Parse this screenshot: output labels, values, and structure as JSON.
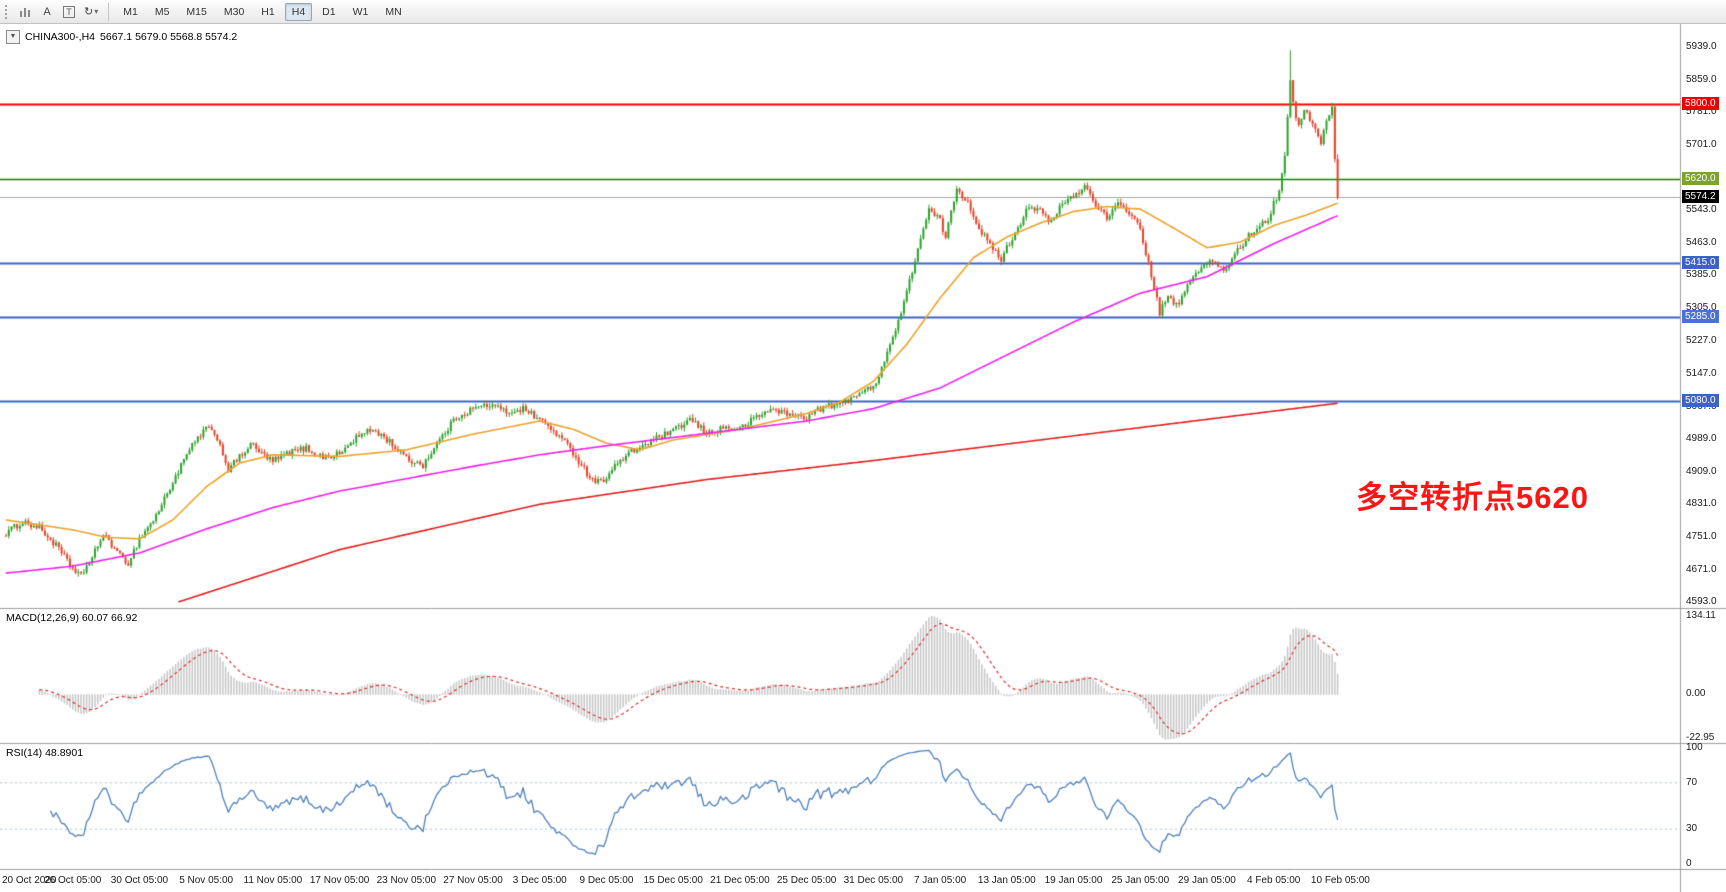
{
  "toolbar": {
    "cursor_label": "A",
    "text_label": "T",
    "cycle_glyph": "↻",
    "dropdown_glyph": "▾",
    "timeframes": [
      "M1",
      "M5",
      "M15",
      "M30",
      "H1",
      "H4",
      "D1",
      "W1",
      "MN"
    ],
    "active_timeframe": "H4"
  },
  "chart": {
    "collapse_glyph": "▼",
    "symbol_period": "CHINA300-,H4",
    "ohlc_text": "5667.1 5679.0 5568.8 5574.2",
    "annotation": {
      "text": "多空转折点5620",
      "color": "#fe1414"
    },
    "price_ticks": [
      {
        "price": 5939.0,
        "label": "5939.0"
      },
      {
        "price": 5859.0,
        "label": "5859.0"
      },
      {
        "price": 5781.0,
        "label": "5781.0"
      },
      {
        "price": 5701.0,
        "label": "5701.0"
      },
      {
        "price": 5620.0,
        "label": "5620.0"
      },
      {
        "price": 5543.0,
        "label": "5543.0"
      },
      {
        "price": 5463.0,
        "label": "5463.0"
      },
      {
        "price": 5385.0,
        "label": "5385.0"
      },
      {
        "price": 5305.0,
        "label": "5305.0"
      },
      {
        "price": 5227.0,
        "label": "5227.0"
      },
      {
        "price": 5147.0,
        "label": "5147.0"
      },
      {
        "price": 5067.0,
        "label": "5067.0"
      },
      {
        "price": 4989.0,
        "label": "4989.0"
      },
      {
        "price": 4909.0,
        "label": "4909.0"
      },
      {
        "price": 4831.0,
        "label": "4831.0"
      },
      {
        "price": 4751.0,
        "label": "4751.0"
      },
      {
        "price": 4671.0,
        "label": "4671.0"
      },
      {
        "price": 4593.0,
        "label": "4593.0"
      }
    ],
    "level_lines": [
      {
        "price": 5800.0,
        "label": "5800.0",
        "line_color": "#ff0000",
        "box_color": "#ee0000",
        "width": 2
      },
      {
        "price": 5620.0,
        "label": "5620.0",
        "line_color": "#008a00",
        "box_color": "#7ea32a",
        "width": 1.6
      },
      {
        "price": 5574.2,
        "label": "5574.2",
        "line_color": "#a8a8a8",
        "box_color": "#000000",
        "width": 1
      },
      {
        "price": 5415.0,
        "label": "5415.0",
        "line_color": "#3a62c8",
        "box_color": "#3a62c8",
        "width": 2
      },
      {
        "price": 5285.0,
        "label": "5285.0",
        "line_color": "#3a62c8",
        "box_color": "#4a72d4",
        "width": 2
      },
      {
        "price": 5080.0,
        "label": "5080.0",
        "line_color": "#3a62c8",
        "box_color": "#3a62c8",
        "width": 2
      }
    ]
  },
  "indicators": {
    "macd_header": "MACD(12,26,9) 60.07 66.92",
    "rsi_header": "RSI(14) 48.8901",
    "macd_scale": {
      "max_label": "134.11",
      "zero_label": "0.00",
      "min_label": "-22.95"
    },
    "rsi_scale": [
      {
        "value": 100,
        "label": "100"
      },
      {
        "value": 70,
        "label": "70"
      },
      {
        "value": 30,
        "label": "30"
      },
      {
        "value": 0,
        "label": "0"
      }
    ]
  },
  "chart_data": {
    "type": "candlestick",
    "symbol": "CHINA300-",
    "timeframe": "H4",
    "bars": 480,
    "y_range": [
      4593.0,
      5939.0
    ],
    "current_price": 5574.2,
    "last_bar_ohlc": {
      "open": 5667.1,
      "high": 5679.0,
      "low": 5568.8,
      "close": 5574.2
    },
    "spike_high": {
      "bar": 462,
      "price": 5931
    },
    "horizontal_levels": [
      5800.0,
      5620.0,
      5415.0,
      5285.0,
      5080.0
    ],
    "close_anchors": [
      [
        0,
        4760
      ],
      [
        6,
        4788
      ],
      [
        12,
        4772
      ],
      [
        18,
        4730
      ],
      [
        24,
        4672
      ],
      [
        28,
        4658
      ],
      [
        32,
        4722
      ],
      [
        36,
        4756
      ],
      [
        40,
        4710
      ],
      [
        44,
        4688
      ],
      [
        48,
        4746
      ],
      [
        54,
        4802
      ],
      [
        60,
        4884
      ],
      [
        66,
        4962
      ],
      [
        72,
        5016
      ],
      [
        76,
        4992
      ],
      [
        80,
        4914
      ],
      [
        84,
        4944
      ],
      [
        88,
        4976
      ],
      [
        92,
        4952
      ],
      [
        96,
        4934
      ],
      [
        102,
        4956
      ],
      [
        108,
        4966
      ],
      [
        114,
        4944
      ],
      [
        120,
        4952
      ],
      [
        126,
        4992
      ],
      [
        132,
        5012
      ],
      [
        138,
        4982
      ],
      [
        144,
        4940
      ],
      [
        150,
        4926
      ],
      [
        156,
        4986
      ],
      [
        162,
        5042
      ],
      [
        168,
        5062
      ],
      [
        174,
        5072
      ],
      [
        180,
        5054
      ],
      [
        186,
        5062
      ],
      [
        192,
        5036
      ],
      [
        198,
        5002
      ],
      [
        204,
        4956
      ],
      [
        210,
        4896
      ],
      [
        214,
        4882
      ],
      [
        218,
        4916
      ],
      [
        224,
        4952
      ],
      [
        230,
        4976
      ],
      [
        236,
        4996
      ],
      [
        240,
        5006
      ],
      [
        246,
        5036
      ],
      [
        252,
        5002
      ],
      [
        258,
        5016
      ],
      [
        264,
        5012
      ],
      [
        270,
        5042
      ],
      [
        276,
        5062
      ],
      [
        282,
        5046
      ],
      [
        288,
        5042
      ],
      [
        294,
        5066
      ],
      [
        300,
        5072
      ],
      [
        306,
        5098
      ],
      [
        312,
        5112
      ],
      [
        316,
        5182
      ],
      [
        320,
        5252
      ],
      [
        324,
        5342
      ],
      [
        328,
        5452
      ],
      [
        332,
        5542
      ],
      [
        336,
        5518
      ],
      [
        338,
        5476
      ],
      [
        342,
        5598
      ],
      [
        346,
        5562
      ],
      [
        350,
        5502
      ],
      [
        354,
        5456
      ],
      [
        358,
        5426
      ],
      [
        364,
        5502
      ],
      [
        368,
        5556
      ],
      [
        372,
        5540
      ],
      [
        376,
        5512
      ],
      [
        380,
        5560
      ],
      [
        384,
        5576
      ],
      [
        388,
        5602
      ],
      [
        392,
        5560
      ],
      [
        396,
        5522
      ],
      [
        400,
        5556
      ],
      [
        404,
        5540
      ],
      [
        408,
        5498
      ],
      [
        412,
        5382
      ],
      [
        415,
        5296
      ],
      [
        418,
        5330
      ],
      [
        422,
        5312
      ],
      [
        426,
        5378
      ],
      [
        430,
        5402
      ],
      [
        434,
        5422
      ],
      [
        438,
        5392
      ],
      [
        442,
        5438
      ],
      [
        446,
        5472
      ],
      [
        450,
        5502
      ],
      [
        454,
        5524
      ],
      [
        458,
        5592
      ],
      [
        460,
        5682
      ],
      [
        462,
        5852
      ],
      [
        463,
        5798
      ],
      [
        465,
        5748
      ],
      [
        467,
        5792
      ],
      [
        469,
        5762
      ],
      [
        471,
        5738
      ],
      [
        473,
        5702
      ],
      [
        475,
        5762
      ],
      [
        477,
        5796
      ],
      [
        478,
        5667.1
      ],
      [
        479,
        5574.2
      ]
    ],
    "moving_averages": [
      {
        "name": "ma-fast-orange",
        "color": "#eda32c",
        "anchors": [
          [
            0,
            4792
          ],
          [
            24,
            4768
          ],
          [
            36,
            4750
          ],
          [
            48,
            4746
          ],
          [
            60,
            4792
          ],
          [
            72,
            4872
          ],
          [
            84,
            4930
          ],
          [
            96,
            4950
          ],
          [
            120,
            4946
          ],
          [
            144,
            4962
          ],
          [
            168,
            5000
          ],
          [
            192,
            5032
          ],
          [
            204,
            5012
          ],
          [
            216,
            4978
          ],
          [
            228,
            4962
          ],
          [
            240,
            4986
          ],
          [
            264,
            5012
          ],
          [
            288,
            5050
          ],
          [
            300,
            5078
          ],
          [
            312,
            5128
          ],
          [
            324,
            5218
          ],
          [
            336,
            5330
          ],
          [
            348,
            5428
          ],
          [
            360,
            5478
          ],
          [
            372,
            5512
          ],
          [
            384,
            5540
          ],
          [
            396,
            5552
          ],
          [
            408,
            5546
          ],
          [
            420,
            5500
          ],
          [
            432,
            5452
          ],
          [
            444,
            5466
          ],
          [
            456,
            5506
          ],
          [
            468,
            5532
          ],
          [
            479,
            5560
          ]
        ]
      },
      {
        "name": "ma-mid-magenta",
        "color": "#ee22ee",
        "anchors": [
          [
            0,
            4663
          ],
          [
            24,
            4680
          ],
          [
            48,
            4712
          ],
          [
            72,
            4770
          ],
          [
            96,
            4822
          ],
          [
            120,
            4862
          ],
          [
            144,
            4892
          ],
          [
            168,
            4922
          ],
          [
            192,
            4950
          ],
          [
            216,
            4972
          ],
          [
            240,
            4992
          ],
          [
            264,
            5012
          ],
          [
            288,
            5032
          ],
          [
            312,
            5062
          ],
          [
            336,
            5112
          ],
          [
            360,
            5192
          ],
          [
            384,
            5272
          ],
          [
            408,
            5342
          ],
          [
            432,
            5382
          ],
          [
            456,
            5462
          ],
          [
            479,
            5530
          ]
        ]
      },
      {
        "name": "ma-slow-red",
        "color": "#e51d1d",
        "start_bar": 62,
        "anchors": [
          [
            62,
            4593
          ],
          [
            120,
            4720
          ],
          [
            192,
            4830
          ],
          [
            252,
            4890
          ],
          [
            312,
            4936
          ],
          [
            372,
            4986
          ],
          [
            432,
            5036
          ],
          [
            479,
            5075
          ]
        ]
      }
    ],
    "time_labels": [
      {
        "bar": 0,
        "label": "20 Oct 2020"
      },
      {
        "bar": 24,
        "label": "26 Oct 05:00"
      },
      {
        "bar": 48,
        "label": "30 Oct 05:00"
      },
      {
        "bar": 72,
        "label": "5 Nov 05:00"
      },
      {
        "bar": 96,
        "label": "11 Nov 05:00"
      },
      {
        "bar": 120,
        "label": "17 Nov 05:00"
      },
      {
        "bar": 144,
        "label": "23 Nov 05:00"
      },
      {
        "bar": 168,
        "label": "27 Nov 05:00"
      },
      {
        "bar": 192,
        "label": "3 Dec 05:00"
      },
      {
        "bar": 216,
        "label": "9 Dec 05:00"
      },
      {
        "bar": 240,
        "label": "15 Dec 05:00"
      },
      {
        "bar": 264,
        "label": "21 Dec 05:00"
      },
      {
        "bar": 288,
        "label": "25 Dec 05:00"
      },
      {
        "bar": 312,
        "label": "31 Dec 05:00"
      },
      {
        "bar": 336,
        "label": "7 Jan 05:00"
      },
      {
        "bar": 360,
        "label": "13 Jan 05:00"
      },
      {
        "bar": 384,
        "label": "19 Jan 05:00"
      },
      {
        "bar": 408,
        "label": "25 Jan 05:00"
      },
      {
        "bar": 432,
        "label": "29 Jan 05:00"
      },
      {
        "bar": 456,
        "label": "4 Feb 05:00"
      },
      {
        "bar": 480,
        "label": "10 Feb 05:00"
      }
    ],
    "macd": {
      "fast": 12,
      "slow": 26,
      "signal": 9,
      "current_macd": 60.07,
      "current_signal": 66.92,
      "visible_max": 134.11,
      "visible_min": -22.95,
      "histogram_color": "#c6c6c6",
      "signal_color": "#e03030"
    },
    "rsi": {
      "period": 14,
      "current": 48.8901,
      "levels": [
        70,
        30
      ],
      "line_color": "#4f81bd"
    },
    "candle_up_color": "#2da32d",
    "candle_down_color": "#e8432a"
  }
}
